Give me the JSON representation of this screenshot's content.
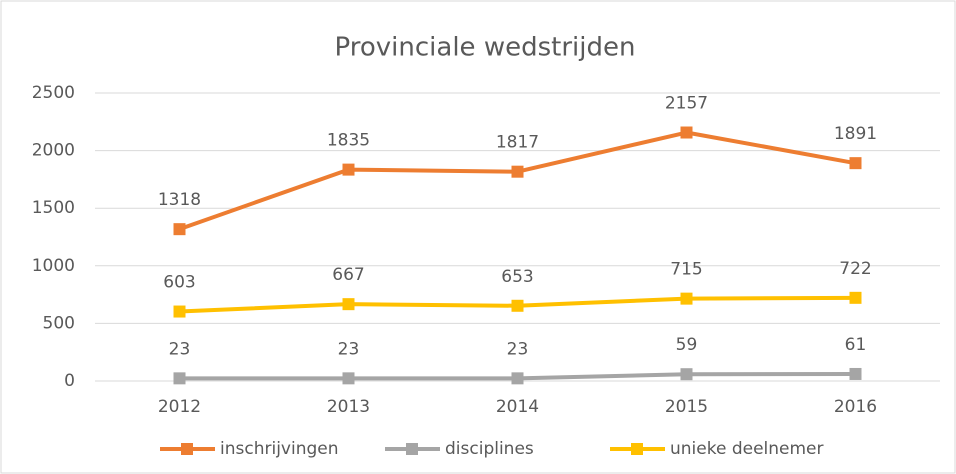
{
  "chart_data": {
    "type": "line",
    "title": "Provinciale wedstrijden",
    "categories": [
      "2012",
      "2013",
      "2014",
      "2015",
      "2016"
    ],
    "series": [
      {
        "name": "inschrijvingen",
        "color": "#ed7d31",
        "values": [
          1318,
          1835,
          1817,
          2157,
          1891
        ]
      },
      {
        "name": "disciplines",
        "color": "#a5a5a5",
        "values": [
          23,
          23,
          23,
          59,
          61
        ]
      },
      {
        "name": "unieke deelnemer",
        "color": "#ffc000",
        "values": [
          603,
          667,
          653,
          715,
          722
        ]
      }
    ],
    "ylim": [
      0,
      2500
    ],
    "yticks": [
      0,
      500,
      1000,
      1500,
      2000,
      2500
    ],
    "grid": true,
    "legend": "bottom"
  }
}
